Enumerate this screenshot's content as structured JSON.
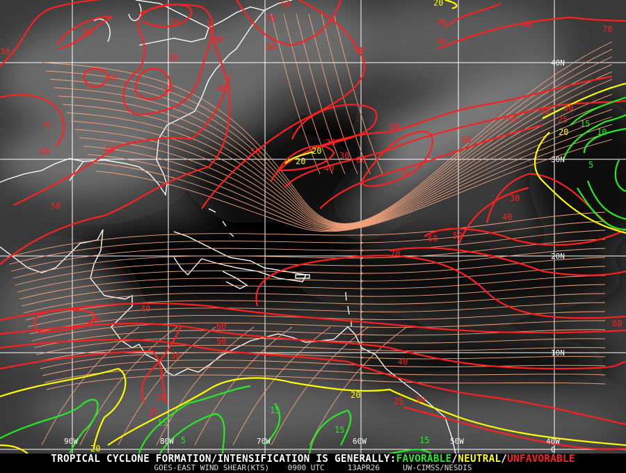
{
  "product": {
    "headline_prefix": "TROPICAL CYCLONE FORMATION/INTENSIFICATION IS GENERALLY:",
    "favorable": "FAVORABLE",
    "sep1": "/",
    "neutral": "NEUTRAL",
    "sep2": "/",
    "unfavorable": "UNFAVORABLE",
    "subtitle": "GOES-EAST WIND SHEAR(KTS)    0900 UTC     13APR26     UW-CIMSS/NESDIS"
  },
  "colors": {
    "favorable": "#22ee22",
    "neutral": "#ffff00",
    "unfavorable": "#ff2020",
    "streamlines": "#f4a47c",
    "coastline": "#ffffff",
    "grid": "#ffffff"
  },
  "grid": {
    "longitudes": [
      "90W",
      "80W",
      "70W",
      "60W",
      "50W",
      "40W"
    ],
    "latitudes": [
      "40N",
      "30N",
      "20N",
      "10N",
      "0"
    ]
  },
  "contour_labels": {
    "unfavorable": [
      "30",
      "30",
      "25",
      "30",
      "30",
      "40",
      "25",
      "40",
      "25",
      "30",
      "40",
      "50",
      "60",
      "70",
      "60",
      "60",
      "50",
      "30",
      "40",
      "40",
      "70",
      "50",
      "60",
      "40",
      "50",
      "30",
      "25",
      "70",
      "60",
      "40",
      "30",
      "25",
      "30",
      "40",
      "60",
      "50",
      "70",
      "40",
      "30",
      "60",
      "50",
      "30",
      "30",
      "25",
      "60",
      "40",
      "25",
      "30"
    ],
    "neutral": [
      "20",
      "20",
      "20",
      "20",
      "20",
      "20"
    ],
    "favorable": [
      "15",
      "10",
      "5",
      "15",
      "15",
      "15",
      "15",
      "5"
    ]
  }
}
